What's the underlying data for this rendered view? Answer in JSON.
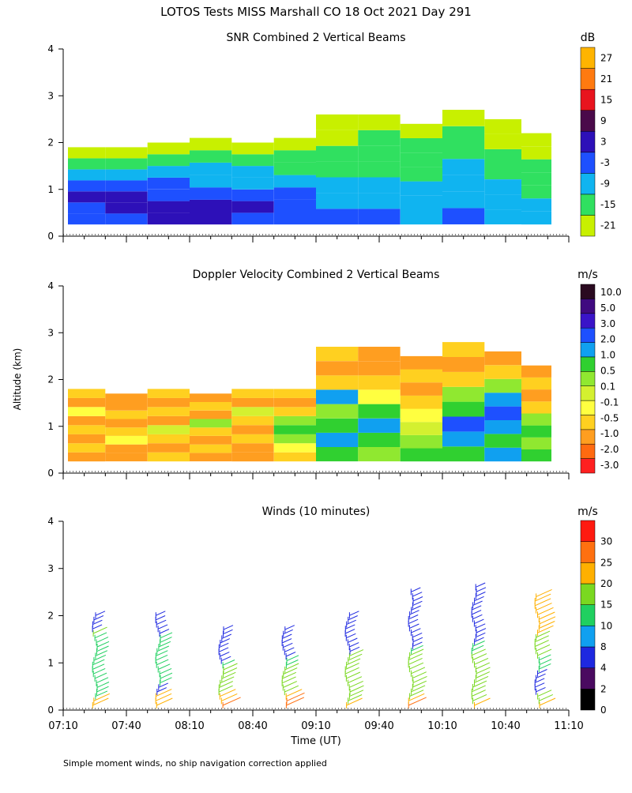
{
  "title": "LOTOS Tests MISS Marshall CO  18 Oct 2021 Day 291",
  "ylabel": "Altitude (km)",
  "xlabel": "Time (UT)",
  "footnote": "Simple moment winds, no ship navigation correction applied",
  "colors": {
    "snr": [
      "#c8f000",
      "#30e060",
      "#10b4f0",
      "#1e50ff",
      "#2d10b8",
      "#4a0a4a",
      "#e8141e",
      "#ff7a10",
      "#ffb400"
    ],
    "velocity": [
      "#ff2020",
      "#ff6a10",
      "#ff9e20",
      "#ffd020",
      "#ffff40",
      "#d4f030",
      "#90e830",
      "#30d030",
      "#10a0f0",
      "#1e50ff",
      "#3a14c8",
      "#400a80",
      "#2a0a20"
    ],
    "winds": [
      "#000000",
      "#4a0a60",
      "#1e28e0",
      "#10a0f0",
      "#20d060",
      "#7ad820",
      "#ffb000",
      "#ff7010",
      "#ff1a10"
    ],
    "white": "#ffffff"
  },
  "chart_data": [
    {
      "type": "heatmap",
      "id": "snr",
      "title": "SNR Combined 2 Vertical Beams",
      "unit": "dB",
      "ylim": [
        0,
        4
      ],
      "y_ticks": [
        "0",
        "1",
        "2",
        "3",
        "4"
      ],
      "xlim_minutes": [
        430,
        670
      ],
      "colorbar_labels": [
        "-21",
        "-15",
        "-9",
        "-3",
        "3",
        "9",
        "15",
        "21",
        "27"
      ],
      "samples": [
        {
          "t": 440,
          "top_km": 1.9,
          "levels": [
            3,
            3,
            4,
            3,
            2,
            1,
            0
          ]
        },
        {
          "t": 460,
          "top_km": 1.9,
          "levels": [
            3,
            4,
            4,
            3,
            2,
            1,
            0
          ]
        },
        {
          "t": 480,
          "top_km": 2.0,
          "levels": [
            4,
            4,
            3,
            3,
            2,
            1,
            0
          ]
        },
        {
          "t": 500,
          "top_km": 2.1,
          "levels": [
            4,
            4,
            3,
            2,
            2,
            1,
            0
          ]
        },
        {
          "t": 520,
          "top_km": 2.0,
          "levels": [
            3,
            4,
            3,
            2,
            2,
            1,
            0
          ]
        },
        {
          "t": 540,
          "top_km": 2.1,
          "levels": [
            3,
            3,
            3,
            2,
            1,
            1,
            0
          ]
        },
        {
          "t": 560,
          "top_km": 2.6,
          "levels": [
            3,
            2,
            2,
            1,
            1,
            0,
            0
          ]
        },
        {
          "t": 580,
          "top_km": 2.6,
          "levels": [
            3,
            2,
            2,
            1,
            1,
            1,
            0
          ]
        },
        {
          "t": 600,
          "top_km": 2.4,
          "levels": [
            2,
            2,
            2,
            1,
            1,
            1,
            0
          ]
        },
        {
          "t": 620,
          "top_km": 2.7,
          "levels": [
            3,
            2,
            2,
            2,
            1,
            1,
            0
          ]
        },
        {
          "t": 640,
          "top_km": 2.5,
          "levels": [
            2,
            2,
            2,
            1,
            1,
            0,
            0
          ]
        },
        {
          "t": 655,
          "top_km": 2.2,
          "levels": [
            2,
            2,
            1,
            1,
            1,
            0,
            0
          ]
        }
      ]
    },
    {
      "type": "heatmap",
      "id": "velocity",
      "title": "Doppler Velocity Combined 2 Vertical Beams",
      "unit": "m/s",
      "ylim": [
        0,
        4
      ],
      "y_ticks": [
        "0",
        "1",
        "2",
        "3",
        "4"
      ],
      "xlim_minutes": [
        430,
        670
      ],
      "colorbar_labels": [
        "-3.0",
        "-2.0",
        "-1.0",
        "-0.5",
        "-0.1",
        "0.1",
        "0.5",
        "1.0",
        "2.0",
        "3.0",
        "5.0",
        "10.0"
      ],
      "samples": [
        {
          "t": 440,
          "top_km": 1.8,
          "levels": [
            2,
            3,
            2,
            3,
            2,
            4,
            2,
            3
          ]
        },
        {
          "t": 460,
          "top_km": 1.7,
          "levels": [
            2,
            2,
            4,
            3,
            2,
            3,
            2,
            2
          ]
        },
        {
          "t": 480,
          "top_km": 1.8,
          "levels": [
            3,
            2,
            3,
            5,
            2,
            3,
            2,
            3
          ]
        },
        {
          "t": 500,
          "top_km": 1.7,
          "levels": [
            2,
            3,
            2,
            3,
            6,
            2,
            3,
            2
          ]
        },
        {
          "t": 520,
          "top_km": 1.8,
          "levels": [
            2,
            2,
            3,
            2,
            3,
            5,
            2,
            3
          ]
        },
        {
          "t": 540,
          "top_km": 1.8,
          "levels": [
            3,
            4,
            6,
            7,
            6,
            3,
            2,
            3
          ]
        },
        {
          "t": 560,
          "top_km": 2.7,
          "levels": [
            7,
            8,
            7,
            6,
            8,
            3,
            2,
            3
          ]
        },
        {
          "t": 580,
          "top_km": 2.7,
          "levels": [
            6,
            7,
            8,
            7,
            4,
            3,
            2,
            2
          ]
        },
        {
          "t": 600,
          "top_km": 2.5,
          "levels": [
            7,
            6,
            5,
            4,
            3,
            2,
            3,
            2
          ]
        },
        {
          "t": 620,
          "top_km": 2.8,
          "levels": [
            7,
            8,
            9,
            7,
            6,
            3,
            2,
            3
          ]
        },
        {
          "t": 640,
          "top_km": 2.6,
          "levels": [
            8,
            7,
            8,
            9,
            8,
            6,
            3,
            2
          ]
        },
        {
          "t": 655,
          "top_km": 2.3,
          "levels": [
            7,
            6,
            7,
            6,
            3,
            2,
            3,
            2
          ]
        }
      ]
    },
    {
      "type": "barbs",
      "id": "winds",
      "title": "Winds (10 minutes)",
      "unit": "m/s",
      "ylim": [
        0,
        4
      ],
      "y_ticks": [
        "0",
        "1",
        "2",
        "3",
        "4"
      ],
      "xlim_minutes": [
        430,
        670
      ],
      "x_ticks": [
        "07:10",
        "07:40",
        "08:10",
        "08:40",
        "09:10",
        "09:40",
        "10:10",
        "10:40",
        "11:10"
      ],
      "colorbar_labels": [
        "0",
        "2",
        "4",
        "8",
        "10",
        "15",
        "20",
        "25",
        "30"
      ],
      "profiles": [
        {
          "t": 445,
          "top_km": 2.1,
          "speeds": [
            20,
            20,
            10,
            10,
            10,
            10,
            10,
            10,
            10,
            10,
            10,
            10,
            10,
            10,
            10,
            10,
            15,
            4,
            4,
            4,
            4
          ]
        },
        {
          "t": 475,
          "top_km": 2.1,
          "speeds": [
            20,
            20,
            20,
            4,
            4,
            10,
            10,
            10,
            10,
            10,
            10,
            10,
            10,
            10,
            10,
            10,
            4,
            4,
            4,
            4,
            4
          ]
        },
        {
          "t": 505,
          "top_km": 1.8,
          "speeds": [
            25,
            20,
            20,
            15,
            15,
            15,
            15,
            15,
            15,
            10,
            4,
            4,
            4,
            4,
            4,
            4,
            4,
            4
          ]
        },
        {
          "t": 535,
          "top_km": 1.8,
          "speeds": [
            25,
            25,
            20,
            15,
            15,
            15,
            15,
            15,
            15,
            10,
            10,
            4,
            4,
            4,
            4,
            4,
            4,
            4
          ]
        },
        {
          "t": 565,
          "top_km": 2.1,
          "speeds": [
            20,
            15,
            15,
            15,
            15,
            15,
            15,
            15,
            15,
            15,
            15,
            15,
            4,
            4,
            4,
            4,
            4,
            4,
            4,
            4,
            4
          ]
        },
        {
          "t": 595,
          "top_km": 2.6,
          "speeds": [
            25,
            20,
            15,
            15,
            15,
            15,
            15,
            15,
            15,
            15,
            15,
            15,
            10,
            4,
            4,
            4,
            4,
            4,
            4,
            4,
            4,
            4,
            4,
            4,
            4,
            4
          ]
        },
        {
          "t": 625,
          "top_km": 2.7,
          "speeds": [
            20,
            15,
            15,
            15,
            15,
            15,
            15,
            15,
            15,
            15,
            15,
            15,
            10,
            10,
            4,
            4,
            4,
            4,
            4,
            4,
            4,
            4,
            4,
            4,
            4,
            4,
            4
          ]
        },
        {
          "t": 655,
          "top_km": 2.5,
          "speeds": [
            20,
            15,
            15,
            4,
            4,
            4,
            4,
            4,
            10,
            10,
            10,
            15,
            15,
            15,
            15,
            15,
            20,
            20,
            20,
            20,
            20,
            20,
            20,
            20,
            20
          ]
        }
      ]
    }
  ]
}
